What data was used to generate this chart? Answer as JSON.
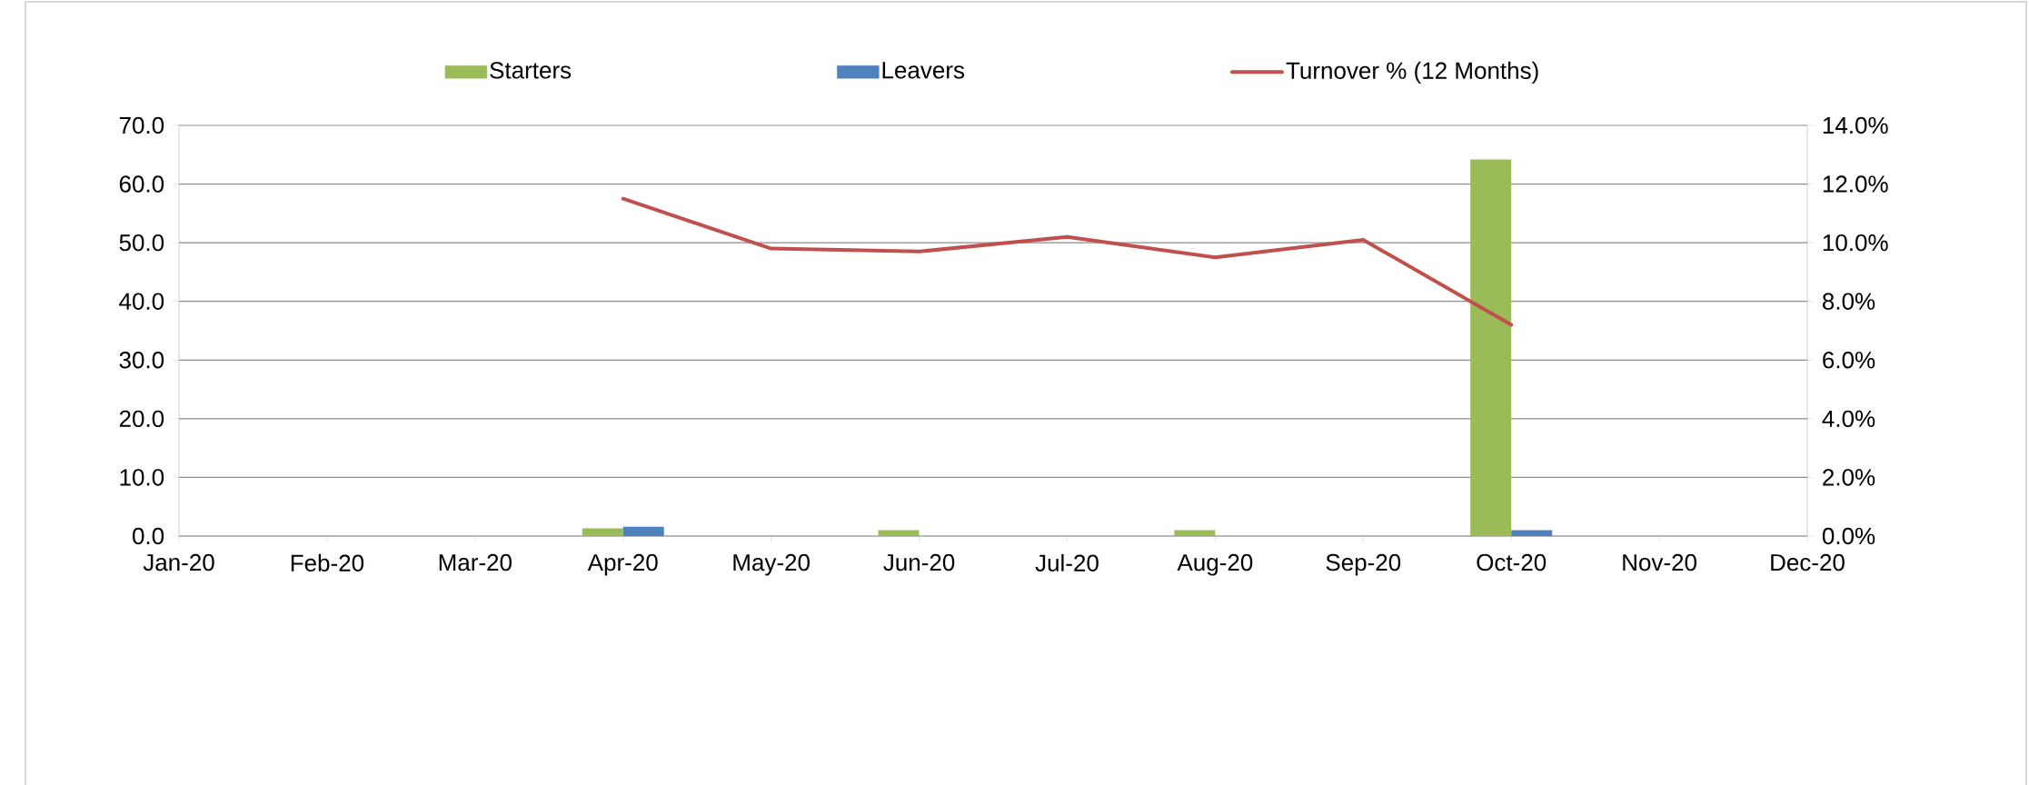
{
  "chart_data": {
    "type": "bar",
    "categories": [
      "Jan-20",
      "Feb-20",
      "Mar-20",
      "Apr-20",
      "May-20",
      "Jun-20",
      "Jul-20",
      "Aug-20",
      "Sep-20",
      "Oct-20",
      "Nov-20",
      "Dec-20"
    ],
    "series": [
      {
        "name": "Starters",
        "color": "#9bbb59",
        "values": [
          null,
          null,
          null,
          1.3,
          null,
          1.0,
          null,
          1.0,
          null,
          64.2,
          null,
          null
        ]
      },
      {
        "name": "Leavers",
        "color": "#4f81bd",
        "values": [
          null,
          null,
          null,
          1.6,
          null,
          null,
          null,
          null,
          null,
          1.0,
          null,
          null
        ]
      },
      {
        "name": "Turnover % (12 Months)",
        "type": "line",
        "axis": "y2",
        "color": "#c0504d",
        "values": [
          null,
          null,
          null,
          11.5,
          9.8,
          9.7,
          10.2,
          9.5,
          10.1,
          7.2,
          null,
          null
        ]
      }
    ],
    "ylim": [
      0,
      70
    ],
    "yticks": [
      {
        "value": 0,
        "label": "0.0"
      },
      {
        "value": 10,
        "label": "10.0"
      },
      {
        "value": 20,
        "label": "20.0"
      },
      {
        "value": 30,
        "label": "30.0"
      },
      {
        "value": 40,
        "label": "40.0"
      },
      {
        "value": 50,
        "label": "50.0"
      },
      {
        "value": 60,
        "label": "60.0"
      },
      {
        "value": 70,
        "label": "70.0"
      }
    ],
    "y2lim": [
      0,
      14
    ],
    "y2ticks": [
      {
        "value": 0,
        "label": "0.0%"
      },
      {
        "value": 2,
        "label": "2.0%"
      },
      {
        "value": 4,
        "label": "4.0%"
      },
      {
        "value": 6,
        "label": "6.0%"
      },
      {
        "value": 8,
        "label": "8.0%"
      },
      {
        "value": 10,
        "label": "10.0%"
      },
      {
        "value": 12,
        "label": "12.0%"
      },
      {
        "value": 14,
        "label": "14.0%"
      }
    ],
    "grid": "y",
    "legend": "top"
  }
}
